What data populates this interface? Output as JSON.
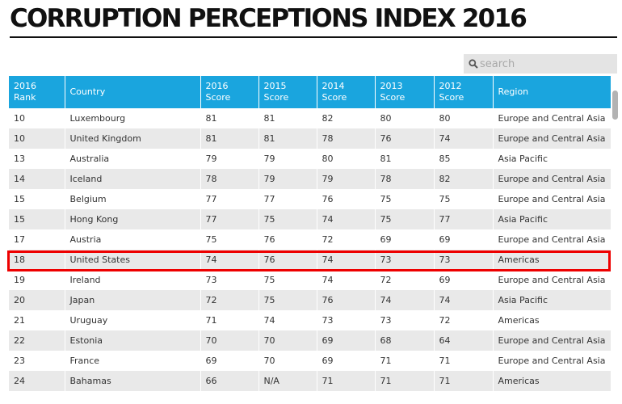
{
  "title": "CORRUPTION PERCEPTIONS INDEX 2016",
  "search": {
    "placeholder": "search"
  },
  "table": {
    "columns": [
      [
        "2016",
        "Rank"
      ],
      [
        "Country"
      ],
      [
        "2016",
        "Score"
      ],
      [
        "2015",
        "Score"
      ],
      [
        "2014",
        "Score"
      ],
      [
        "2013",
        "Score"
      ],
      [
        "2012",
        "Score"
      ],
      [
        "Region"
      ]
    ],
    "rows": [
      [
        "10",
        "Luxembourg",
        "81",
        "81",
        "82",
        "80",
        "80",
        "Europe and Central Asia"
      ],
      [
        "10",
        "United Kingdom",
        "81",
        "81",
        "78",
        "76",
        "74",
        "Europe and Central Asia"
      ],
      [
        "13",
        "Australia",
        "79",
        "79",
        "80",
        "81",
        "85",
        "Asia Pacific"
      ],
      [
        "14",
        "Iceland",
        "78",
        "79",
        "79",
        "78",
        "82",
        "Europe and Central Asia"
      ],
      [
        "15",
        "Belgium",
        "77",
        "77",
        "76",
        "75",
        "75",
        "Europe and Central Asia"
      ],
      [
        "15",
        "Hong Kong",
        "77",
        "75",
        "74",
        "75",
        "77",
        "Asia Pacific"
      ],
      [
        "17",
        "Austria",
        "75",
        "76",
        "72",
        "69",
        "69",
        "Europe and Central Asia"
      ],
      [
        "18",
        "United States",
        "74",
        "76",
        "74",
        "73",
        "73",
        "Americas"
      ],
      [
        "19",
        "Ireland",
        "73",
        "75",
        "74",
        "72",
        "69",
        "Europe and Central Asia"
      ],
      [
        "20",
        "Japan",
        "72",
        "75",
        "76",
        "74",
        "74",
        "Asia Pacific"
      ],
      [
        "21",
        "Uruguay",
        "71",
        "74",
        "73",
        "73",
        "72",
        "Americas"
      ],
      [
        "22",
        "Estonia",
        "70",
        "70",
        "69",
        "68",
        "64",
        "Europe and Central Asia"
      ],
      [
        "23",
        "France",
        "69",
        "70",
        "69",
        "71",
        "71",
        "Europe and Central Asia"
      ],
      [
        "24",
        "Bahamas",
        "66",
        "N/A",
        "71",
        "71",
        "71",
        "Americas"
      ]
    ],
    "highlighted_row": 7
  },
  "colors": {
    "header": "#1aa5de",
    "stripe": "#e9e9e9",
    "highlight": "#ee0000"
  }
}
